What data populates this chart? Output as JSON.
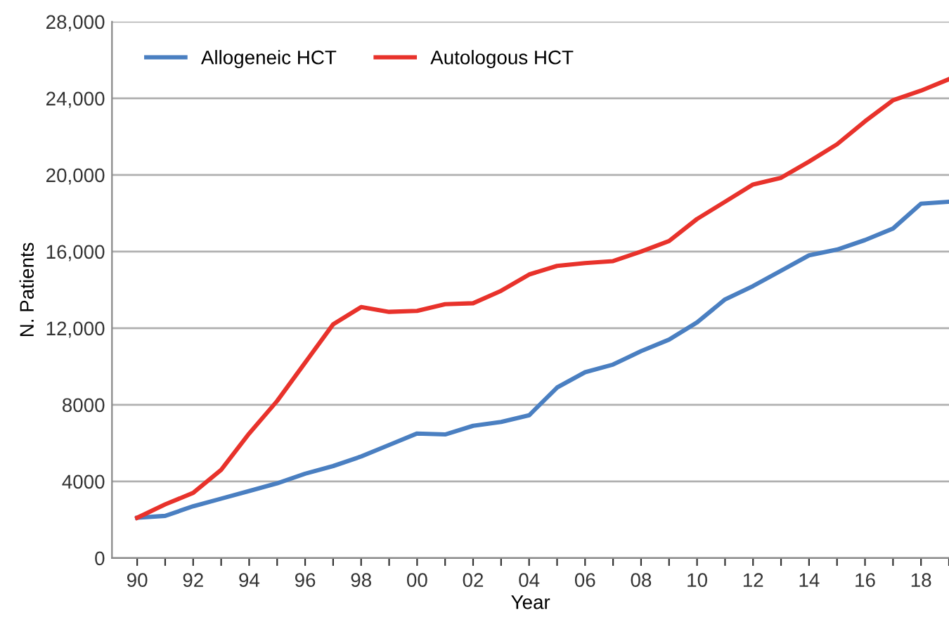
{
  "chart_data": {
    "type": "line",
    "xlabel": "Year",
    "ylabel": "N. Patients",
    "x": [
      1990,
      1991,
      1992,
      1993,
      1994,
      1995,
      1996,
      1997,
      1998,
      1999,
      2000,
      2001,
      2002,
      2003,
      2004,
      2005,
      2006,
      2007,
      2008,
      2009,
      2010,
      2011,
      2012,
      2013,
      2014,
      2015,
      2016,
      2017,
      2018,
      2019
    ],
    "series": [
      {
        "name": "Allogeneic HCT",
        "color": "#4a7fc1",
        "values": [
          2100,
          2200,
          2700,
          3100,
          3500,
          3900,
          4400,
          4800,
          5300,
          5900,
          6500,
          6450,
          6900,
          7100,
          7450,
          8900,
          9700,
          10100,
          10800,
          11400,
          12300,
          13500,
          14200,
          15000,
          15800,
          16100,
          16600,
          17200,
          18500,
          18600
        ]
      },
      {
        "name": "Autologous HCT",
        "color": "#e8322b",
        "values": [
          2100,
          2800,
          3400,
          4600,
          6500,
          8200,
          10200,
          12200,
          13100,
          12850,
          12900,
          13250,
          13300,
          13950,
          14800,
          15250,
          15400,
          15500,
          16000,
          16550,
          17700,
          18600,
          19500,
          19850,
          20700,
          21600,
          22800,
          23900,
          24400,
          25000
        ]
      }
    ],
    "xlim": [
      1989.1,
      2019
    ],
    "xticks": [
      {
        "value": 1990,
        "label": "90"
      },
      {
        "value": 1991,
        "label": null
      },
      {
        "value": 1992,
        "label": "92"
      },
      {
        "value": 1993,
        "label": null
      },
      {
        "value": 1994,
        "label": "94"
      },
      {
        "value": 1995,
        "label": null
      },
      {
        "value": 1996,
        "label": "96"
      },
      {
        "value": 1997,
        "label": null
      },
      {
        "value": 1998,
        "label": "98"
      },
      {
        "value": 1999,
        "label": null
      },
      {
        "value": 2000,
        "label": "00"
      },
      {
        "value": 2001,
        "label": null
      },
      {
        "value": 2002,
        "label": "02"
      },
      {
        "value": 2003,
        "label": null
      },
      {
        "value": 2004,
        "label": "04"
      },
      {
        "value": 2005,
        "label": null
      },
      {
        "value": 2006,
        "label": "06"
      },
      {
        "value": 2007,
        "label": null
      },
      {
        "value": 2008,
        "label": "08"
      },
      {
        "value": 2009,
        "label": null
      },
      {
        "value": 2010,
        "label": "10"
      },
      {
        "value": 2011,
        "label": null
      },
      {
        "value": 2012,
        "label": "12"
      },
      {
        "value": 2013,
        "label": null
      },
      {
        "value": 2014,
        "label": "14"
      },
      {
        "value": 2015,
        "label": null
      },
      {
        "value": 2016,
        "label": "16"
      },
      {
        "value": 2017,
        "label": null
      },
      {
        "value": 2018,
        "label": "18"
      },
      {
        "value": 2019,
        "label": null
      }
    ],
    "ylim": [
      0,
      28000
    ],
    "yticks": [
      0,
      4000,
      8000,
      {
        "value": 12000,
        "label": "12,000"
      },
      {
        "value": 16000,
        "label": "16,000"
      },
      {
        "value": 20000,
        "label": "20,000"
      },
      {
        "value": 24000,
        "label": "24,000"
      },
      {
        "value": 28000,
        "label": "28,000"
      }
    ],
    "grid": "y",
    "legend": "top left",
    "marker": "none",
    "line_style": "solid"
  }
}
